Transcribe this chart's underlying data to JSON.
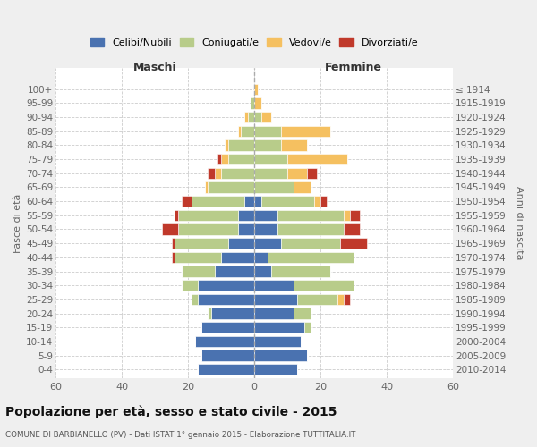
{
  "age_groups_bottom_to_top": [
    "0-4",
    "5-9",
    "10-14",
    "15-19",
    "20-24",
    "25-29",
    "30-34",
    "35-39",
    "40-44",
    "45-49",
    "50-54",
    "55-59",
    "60-64",
    "65-69",
    "70-74",
    "75-79",
    "80-84",
    "85-89",
    "90-94",
    "95-99",
    "100+"
  ],
  "birth_years_bottom_to_top": [
    "2010-2014",
    "2005-2009",
    "2000-2004",
    "1995-1999",
    "1990-1994",
    "1985-1989",
    "1980-1984",
    "1975-1979",
    "1970-1974",
    "1965-1969",
    "1960-1964",
    "1955-1959",
    "1950-1954",
    "1945-1949",
    "1940-1944",
    "1935-1939",
    "1930-1934",
    "1925-1929",
    "1920-1924",
    "1915-1919",
    "≤ 1914"
  ],
  "maschi_celibi": [
    17,
    16,
    18,
    16,
    13,
    17,
    17,
    12,
    10,
    8,
    5,
    5,
    3,
    0,
    0,
    0,
    0,
    0,
    0,
    0,
    0
  ],
  "maschi_coniugati": [
    0,
    0,
    0,
    0,
    1,
    2,
    5,
    10,
    14,
    16,
    18,
    18,
    16,
    14,
    10,
    8,
    8,
    4,
    2,
    1,
    0
  ],
  "maschi_vedovi": [
    0,
    0,
    0,
    0,
    0,
    0,
    0,
    0,
    0,
    0,
    0,
    0,
    0,
    1,
    2,
    2,
    1,
    1,
    1,
    0,
    0
  ],
  "maschi_divorziati": [
    0,
    0,
    0,
    0,
    0,
    0,
    0,
    0,
    1,
    1,
    5,
    1,
    3,
    0,
    2,
    1,
    0,
    0,
    0,
    0,
    0
  ],
  "femmine_nubili": [
    13,
    16,
    14,
    15,
    12,
    13,
    12,
    5,
    4,
    8,
    7,
    7,
    2,
    0,
    0,
    0,
    0,
    0,
    0,
    0,
    0
  ],
  "femmine_coniugate": [
    0,
    0,
    0,
    2,
    5,
    12,
    18,
    18,
    26,
    18,
    20,
    20,
    16,
    12,
    10,
    10,
    8,
    8,
    2,
    0,
    0
  ],
  "femmine_vedove": [
    0,
    0,
    0,
    0,
    0,
    2,
    0,
    0,
    0,
    0,
    0,
    2,
    2,
    5,
    6,
    18,
    8,
    15,
    3,
    2,
    1
  ],
  "femmine_divorziate": [
    0,
    0,
    0,
    0,
    0,
    2,
    0,
    0,
    0,
    8,
    5,
    3,
    2,
    0,
    3,
    0,
    0,
    0,
    0,
    0,
    0
  ],
  "color_celibi": "#4a72b0",
  "color_coniugati": "#b8cc8a",
  "color_vedovi": "#f5c060",
  "color_divorziati": "#c0392b",
  "xlim": 60,
  "title": "Popolazione per età, sesso e stato civile - 2015",
  "subtitle": "COMUNE DI BARBIANELLO (PV) - Dati ISTAT 1° gennaio 2015 - Elaborazione TUTTITALIA.IT",
  "ylabel_left": "Fasce di età",
  "ylabel_right": "Anni di nascita",
  "label_maschi": "Maschi",
  "label_femmine": "Femmine",
  "legend_celibi": "Celibi/Nubili",
  "legend_coniugati": "Coniugati/e",
  "legend_vedovi": "Vedovi/e",
  "legend_divorziati": "Divorziati/e",
  "bg_color": "#efefef",
  "plot_bg": "#ffffff"
}
